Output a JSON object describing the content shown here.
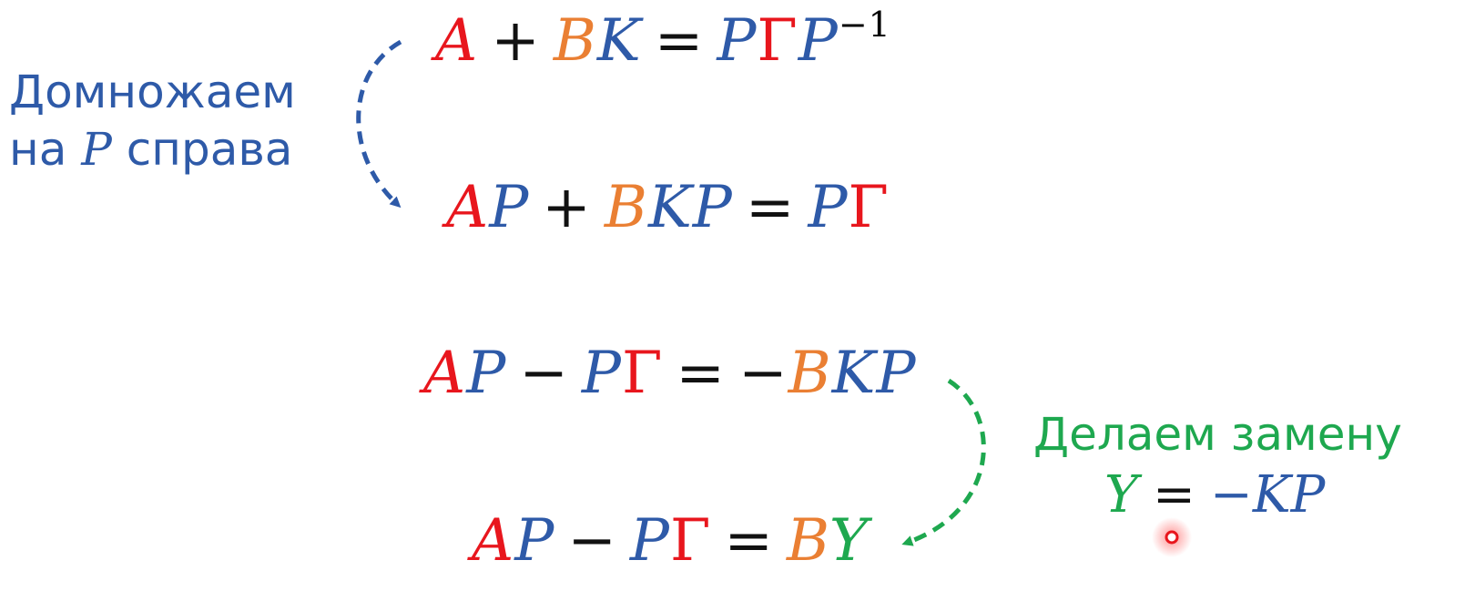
{
  "eq1": {
    "a": "A",
    "plus": "+",
    "b": "B",
    "k": "K",
    "eq": "=",
    "p": "P",
    "gamma": "Γ",
    "p2": "P",
    "inv": "−1"
  },
  "eq2": {
    "a": "A",
    "p": "P",
    "plus": "+",
    "b": "B",
    "k": "K",
    "p2": "P",
    "eq": "=",
    "p3": "P",
    "gamma": "Γ"
  },
  "eq3": {
    "a": "A",
    "p": "P",
    "minus": "−",
    "p2": "P",
    "gamma": "Γ",
    "eq": "=",
    "neg": "−",
    "b": "B",
    "k": "K",
    "p3": "P"
  },
  "eq4": {
    "a": "A",
    "p": "P",
    "minus": "−",
    "p2": "P",
    "gamma": "Γ",
    "eq": "=",
    "b": "B",
    "y": "Y"
  },
  "note_left": {
    "line1": "Домножаем",
    "line2_pre": "на ",
    "line2_var": "P",
    "line2_post": " справа"
  },
  "note_right": {
    "line1": "Делаем замену",
    "y": "Y",
    "eq": "=",
    "rhs": "−KP"
  },
  "colors": {
    "red": "#e8161d",
    "blue": "#2e5aa8",
    "orange": "#ea7f33",
    "green": "#1ea84f"
  }
}
